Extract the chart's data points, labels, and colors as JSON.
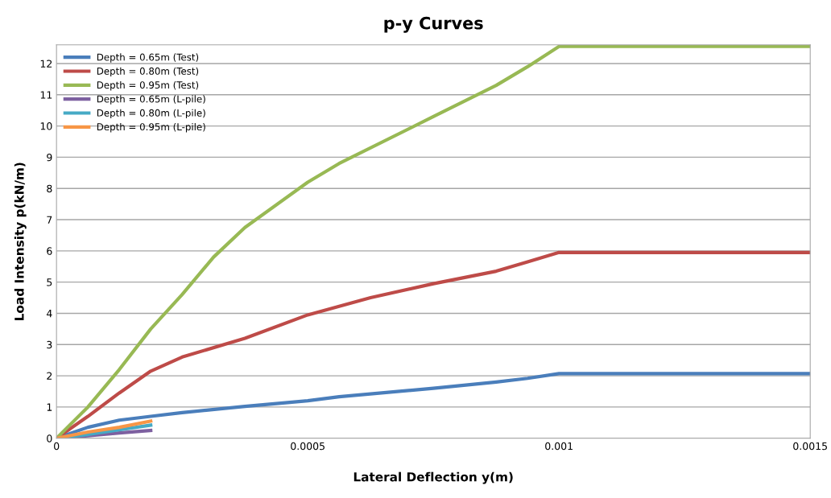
{
  "chart_data": {
    "type": "line",
    "title": "p-y Curves",
    "xlabel": "Lateral Deflection y(m)",
    "ylabel": "Load Intensity p(kN/m)",
    "xlim": [
      0,
      0.0015
    ],
    "xticks": [
      0,
      {
        "value": 0.0005,
        "label": "0.0005"
      },
      {
        "value": 0.001,
        "label": "0.001"
      },
      {
        "value": 0.0015,
        "label": "0.0015"
      }
    ],
    "ylim": [
      0,
      12.6
    ],
    "yticks": [
      0,
      1,
      2,
      3,
      4,
      5,
      6,
      7,
      8,
      9,
      10,
      11,
      12
    ],
    "grid": "y",
    "legend": "top left",
    "marker": "none",
    "line_style": "solid",
    "series": [
      {
        "name": "Depth = 0.65m (Test)",
        "color": "#4a7ebb",
        "x": [
          0,
          6.25e-05,
          0.000125,
          0.0001875,
          0.00025,
          0.000375,
          0.0005,
          0.0005625,
          0.00075,
          0.000875,
          0.0009375,
          0.001,
          0.0015
        ],
        "values": [
          0,
          0.35,
          0.58,
          0.7,
          0.82,
          1.02,
          1.2,
          1.33,
          1.6,
          1.8,
          1.92,
          2.07,
          2.07
        ]
      },
      {
        "name": "Depth = 0.80m (Test)",
        "color": "#be4b48",
        "x": [
          0,
          6.25e-05,
          0.000125,
          0.0001875,
          0.00025,
          0.000375,
          0.0005,
          0.000625,
          0.00075,
          0.000875,
          0.0009375,
          0.001,
          0.0015
        ],
        "values": [
          0,
          0.7,
          1.45,
          2.15,
          2.6,
          3.2,
          3.95,
          4.5,
          4.95,
          5.35,
          5.65,
          5.95,
          5.95
        ]
      },
      {
        "name": "Depth = 0.95m (Test)",
        "color": "#98b954",
        "x": [
          0,
          6.25e-05,
          0.000125,
          0.0001875,
          0.00025,
          0.0003125,
          0.000375,
          0.0005,
          0.0005625,
          0.00075,
          0.000875,
          0.0009375,
          0.001,
          0.0015
        ],
        "values": [
          0,
          1.0,
          2.2,
          3.5,
          4.6,
          5.8,
          6.75,
          8.2,
          8.8,
          10.3,
          11.3,
          11.9,
          12.55,
          12.55
        ]
      },
      {
        "name": "Depth = 0.65m (L-pile)",
        "color": "#7d60a0",
        "x": [
          0,
          6.25e-05,
          0.000125,
          0.0001875
        ],
        "values": [
          0,
          0.08,
          0.17,
          0.25
        ]
      },
      {
        "name": "Depth = 0.80m (L-pile)",
        "color": "#46aac5",
        "x": [
          0,
          6.25e-05,
          0.000125,
          0.0001875
        ],
        "values": [
          0,
          0.12,
          0.27,
          0.42
        ]
      },
      {
        "name": "Depth = 0.95m (L-pile)",
        "color": "#f79646",
        "x": [
          0,
          6.25e-05,
          0.000125,
          0.0001875
        ],
        "values": [
          0,
          0.2,
          0.35,
          0.55
        ]
      }
    ]
  }
}
